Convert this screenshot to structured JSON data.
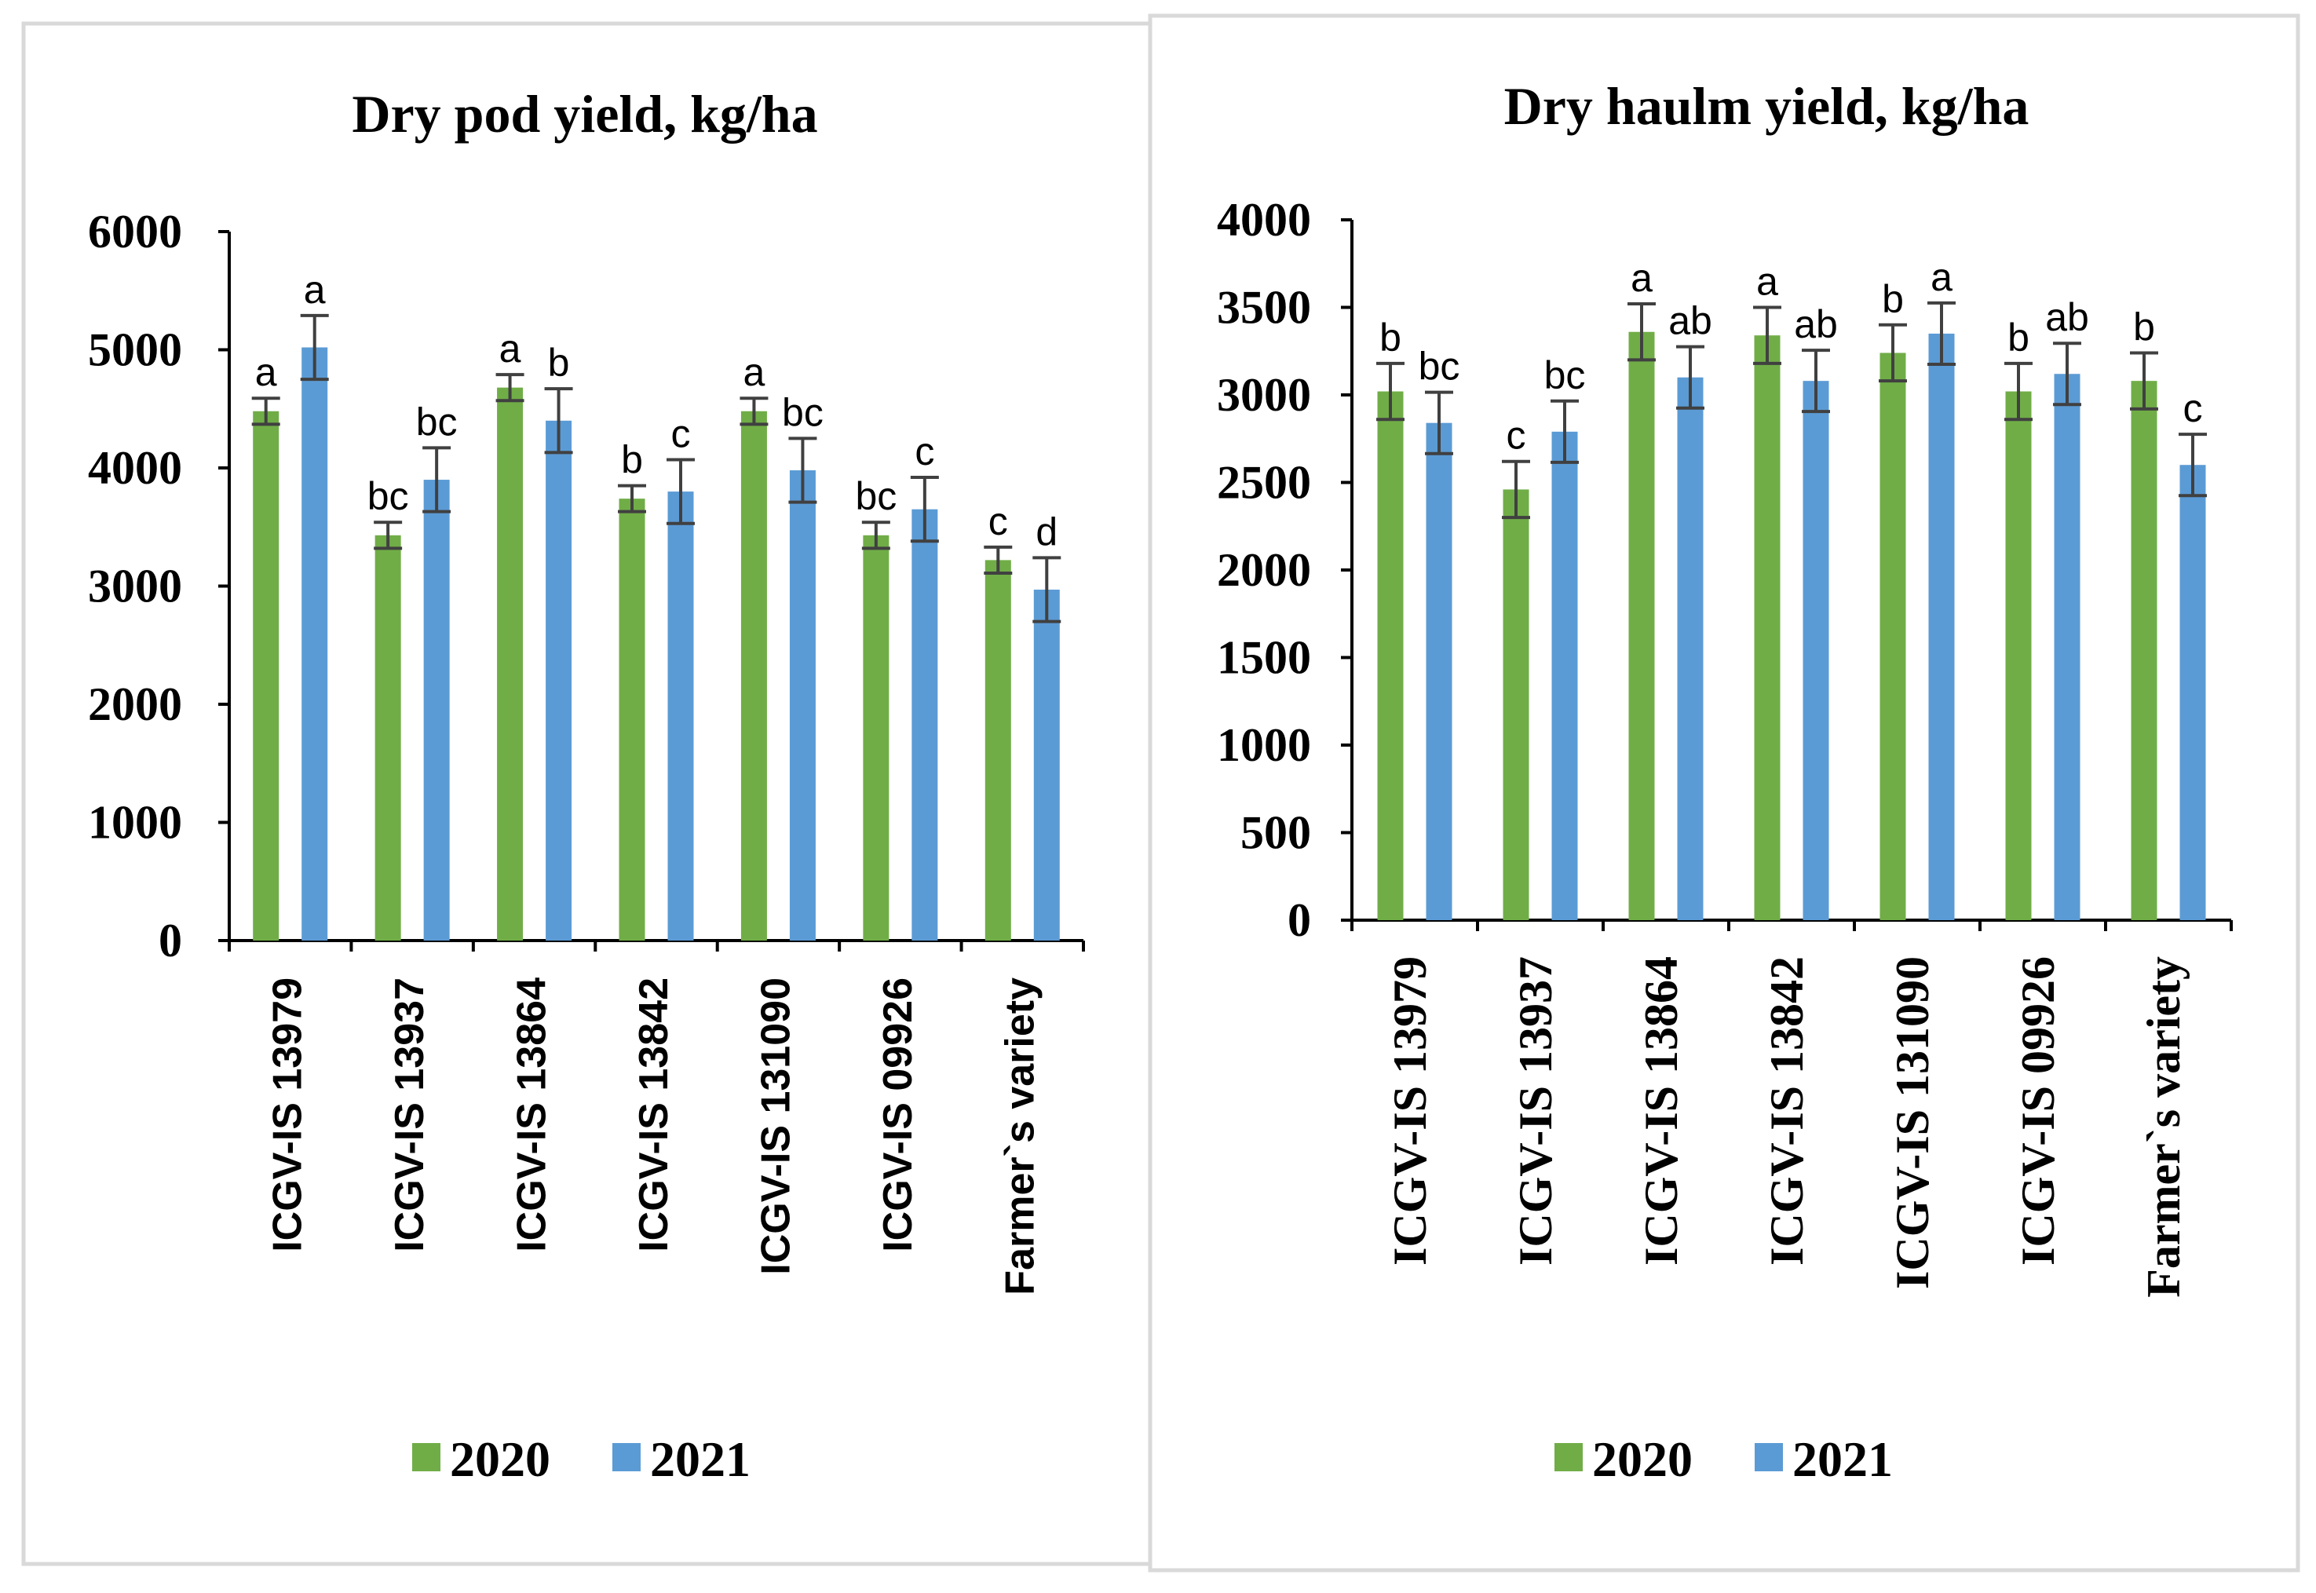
{
  "colors": {
    "series_2020": "#70ad47",
    "series_2021": "#5b9bd5",
    "axis": "#000000",
    "panel_border": "#d9d9d9",
    "error_bar": "#404040"
  },
  "chart_data": [
    {
      "type": "bar",
      "title": "Dry pod yield, kg/ha",
      "xlabel": "",
      "ylabel": "",
      "ylim": [
        0,
        6000
      ],
      "yticks": [
        0,
        1000,
        2000,
        3000,
        4000,
        5000,
        6000
      ],
      "grid": false,
      "legend_position": "bottom",
      "categories": [
        "ICGV-IS 13979",
        "ICGV-IS 13937",
        "ICGV-IS 13864",
        "ICGV-IS 13842",
        "ICGV-IS 131090",
        "ICGV-IS 09926",
        "Farmer`s variety"
      ],
      "series": [
        {
          "name": "2020",
          "values": [
            4480,
            3430,
            4680,
            3740,
            4480,
            3430,
            3220
          ],
          "errors": [
            110,
            110,
            110,
            110,
            110,
            110,
            110
          ],
          "letters": [
            "a",
            "bc",
            "a",
            "b",
            "a",
            "bc",
            "c"
          ]
        },
        {
          "name": "2021",
          "values": [
            5020,
            3900,
            4400,
            3800,
            3980,
            3650,
            2970
          ],
          "errors": [
            270,
            270,
            270,
            270,
            270,
            270,
            270
          ],
          "letters": [
            "a",
            "bc",
            "b",
            "c",
            "bc",
            "c",
            "d"
          ]
        }
      ]
    },
    {
      "type": "bar",
      "title": "Dry haulm  yield, kg/ha",
      "xlabel": "",
      "ylabel": "",
      "ylim": [
        0,
        4000
      ],
      "yticks": [
        0,
        500,
        1000,
        1500,
        2000,
        2500,
        3000,
        3500,
        4000
      ],
      "grid": false,
      "legend_position": "bottom",
      "categories": [
        "ICGV-IS 13979",
        "ICGV-IS 13937",
        "ICGV-IS 13864",
        "ICGV-IS 13842",
        "ICGV-IS 131090",
        "ICGV-IS 09926",
        "Farmer`s variety"
      ],
      "series": [
        {
          "name": "2020",
          "values": [
            3020,
            2460,
            3360,
            3340,
            3240,
            3020,
            3080
          ],
          "errors": [
            160,
            160,
            160,
            160,
            160,
            160,
            160
          ],
          "letters": [
            "b",
            "c",
            "a",
            "a",
            "b",
            "b",
            "b"
          ]
        },
        {
          "name": "2021",
          "values": [
            2840,
            2790,
            3100,
            3080,
            3350,
            3120,
            2600
          ],
          "errors": [
            175,
            175,
            175,
            175,
            175,
            175,
            175
          ],
          "letters": [
            "bc",
            "bc",
            "ab",
            "ab",
            "a",
            "ab",
            "c"
          ]
        }
      ]
    }
  ]
}
